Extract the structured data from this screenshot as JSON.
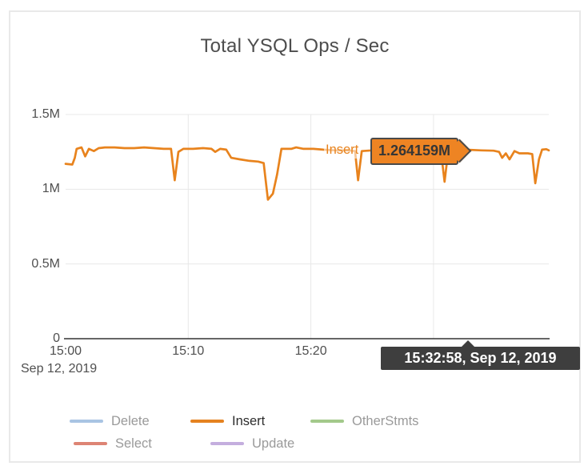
{
  "title": "Total YSQL Ops / Sec",
  "axes": {
    "date_label": "Sep 12, 2019"
  },
  "hover": {
    "series_label": "Insert",
    "value_label": "1.264159M",
    "time_label": "15:32:58, Sep 12, 2019",
    "x_minute": 32.9,
    "y_value": 1.264159
  },
  "colors": {
    "accent_orange": "#e8831d",
    "card_border": "#e9e9e9",
    "grid": "#e8e8e8",
    "axis_line": "#333333",
    "axis_text": "#4f4f4f",
    "title_text": "#4d4d4d",
    "legend_inactive_text": "#9a9a9a",
    "legend_active_text": "#2d2d2d",
    "time_tooltip_bg": "#3e3e3e",
    "time_tooltip_text": "#ffffff",
    "value_tooltip_bg": "#ee8423",
    "value_tooltip_border": "#4a4a4a"
  },
  "chart_data": {
    "type": "line",
    "title": "Total YSQL Ops / Sec",
    "grid": true,
    "legend_position": "bottom",
    "x_axis": {
      "start_time": "15:00",
      "date_label": "Sep 12, 2019",
      "tick_labels": [
        "15:00",
        "15:10",
        "15:20"
      ],
      "tick_minutes": [
        0,
        10,
        20
      ],
      "grid_minutes": [
        10,
        20,
        30
      ],
      "range_minutes": [
        0,
        39.4
      ]
    },
    "y_axis": {
      "unit": "ops/sec (millions)",
      "tick_labels": [
        "1.5M",
        "1M",
        "0.5M",
        "0"
      ],
      "tick_values": [
        1.5,
        1,
        0.5,
        0
      ],
      "range": [
        0,
        1.5
      ]
    },
    "legend": [
      {
        "name": "Delete",
        "color": "#a9c4e3",
        "active": false
      },
      {
        "name": "Insert",
        "color": "#e58220",
        "active": true
      },
      {
        "name": "OtherStmts",
        "color": "#a3c98b",
        "active": false
      },
      {
        "name": "Select",
        "color": "#dd8474",
        "active": false
      },
      {
        "name": "Update",
        "color": "#c4aede",
        "active": false
      }
    ],
    "series": [
      {
        "name": "Insert",
        "color": "#e8831d",
        "units": "M ops/sec, x = minutes after 15:00",
        "points": [
          [
            0,
            1.17
          ],
          [
            0.55,
            1.165
          ],
          [
            0.75,
            1.21
          ],
          [
            0.9,
            1.27
          ],
          [
            1.3,
            1.28
          ],
          [
            1.6,
            1.22
          ],
          [
            1.9,
            1.27
          ],
          [
            2.3,
            1.255
          ],
          [
            2.7,
            1.275
          ],
          [
            3.2,
            1.28
          ],
          [
            4,
            1.28
          ],
          [
            4.8,
            1.275
          ],
          [
            5.6,
            1.275
          ],
          [
            6.4,
            1.28
          ],
          [
            7.2,
            1.275
          ],
          [
            8,
            1.27
          ],
          [
            8.6,
            1.27
          ],
          [
            8.9,
            1.06
          ],
          [
            9.2,
            1.25
          ],
          [
            9.6,
            1.27
          ],
          [
            10.4,
            1.27
          ],
          [
            11.2,
            1.275
          ],
          [
            11.9,
            1.27
          ],
          [
            12.2,
            1.25
          ],
          [
            12.6,
            1.27
          ],
          [
            13.1,
            1.265
          ],
          [
            13.5,
            1.21
          ],
          [
            14.2,
            1.2
          ],
          [
            15,
            1.19
          ],
          [
            15.7,
            1.185
          ],
          [
            16.15,
            1.175
          ],
          [
            16.5,
            0.93
          ],
          [
            16.9,
            0.97
          ],
          [
            17.25,
            1.1
          ],
          [
            17.6,
            1.27
          ],
          [
            18.4,
            1.27
          ],
          [
            18.8,
            1.28
          ],
          [
            19.4,
            1.27
          ],
          [
            20.2,
            1.27
          ],
          [
            21,
            1.265
          ],
          [
            22,
            1.26
          ],
          [
            23,
            1.26
          ],
          [
            23.6,
            1.255
          ],
          [
            23.85,
            1.06
          ],
          [
            24.15,
            1.255
          ],
          [
            25,
            1.26
          ],
          [
            26,
            1.262
          ],
          [
            27,
            1.258
          ],
          [
            28,
            1.26
          ],
          [
            29,
            1.262
          ],
          [
            30,
            1.258
          ],
          [
            30.6,
            1.258
          ],
          [
            30.9,
            1.05
          ],
          [
            31.2,
            1.255
          ],
          [
            32,
            1.26
          ],
          [
            32.9,
            1.264
          ],
          [
            33.9,
            1.26
          ],
          [
            34.9,
            1.258
          ],
          [
            35.35,
            1.25
          ],
          [
            35.6,
            1.21
          ],
          [
            35.9,
            1.24
          ],
          [
            36.2,
            1.2
          ],
          [
            36.6,
            1.255
          ],
          [
            37,
            1.24
          ],
          [
            37.7,
            1.24
          ],
          [
            38.05,
            1.235
          ],
          [
            38.3,
            1.04
          ],
          [
            38.6,
            1.2
          ],
          [
            38.85,
            1.265
          ],
          [
            39.2,
            1.268
          ],
          [
            39.4,
            1.26
          ]
        ]
      }
    ]
  }
}
